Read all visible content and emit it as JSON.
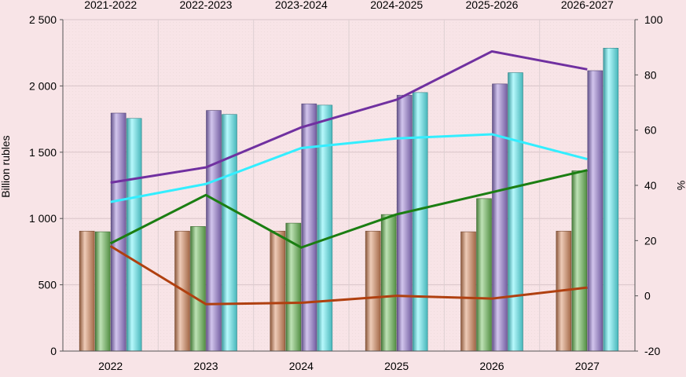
{
  "chart_data": {
    "type": "bar",
    "xlabel": "",
    "ylabel": "Billion rubles",
    "y2label": "%",
    "ylim": [
      0,
      2500
    ],
    "y2lim": [
      -20,
      100
    ],
    "yticks": [
      "0",
      "500",
      "1 000",
      "1 500",
      "2 000",
      "2 500"
    ],
    "y2ticks": [
      "-20",
      "0",
      "20",
      "40",
      "60",
      "80",
      "100"
    ],
    "categories": [
      "2022",
      "2023",
      "2024",
      "2025",
      "2026",
      "2027"
    ],
    "top_categories": [
      "2021-2022",
      "2022-2023",
      "2023-2024",
      "2024-2025",
      "2025-2026",
      "2026-2027"
    ],
    "grid": true,
    "legend": "none",
    "bar_series": [
      {
        "color": "#d98b5f",
        "values": [
          905,
          905,
          905,
          905,
          900,
          905
        ]
      },
      {
        "color": "#6fbf5a",
        "values": [
          900,
          940,
          965,
          1030,
          1150,
          1360
        ]
      },
      {
        "color": "#9a7fd6",
        "values": [
          1795,
          1815,
          1865,
          1930,
          2015,
          2115
        ]
      },
      {
        "color": "#5ff2f8",
        "values": [
          1755,
          1785,
          1855,
          1950,
          2100,
          2285
        ]
      }
    ],
    "line_series": [
      {
        "color": "#b04010",
        "axis": "right",
        "values": [
          18,
          -3,
          -2.5,
          0,
          -1,
          3
        ]
      },
      {
        "color": "#1b7e12",
        "axis": "right",
        "values": [
          19,
          36.5,
          17.5,
          29.5,
          37.5,
          45.5
        ]
      },
      {
        "color": "#7030a0",
        "axis": "right",
        "values": [
          41,
          46.5,
          61,
          71,
          88.5,
          82
        ]
      },
      {
        "color": "#33eeff",
        "axis": "right",
        "values": [
          34,
          40.5,
          53.5,
          57,
          58.5,
          49.5
        ]
      }
    ]
  }
}
